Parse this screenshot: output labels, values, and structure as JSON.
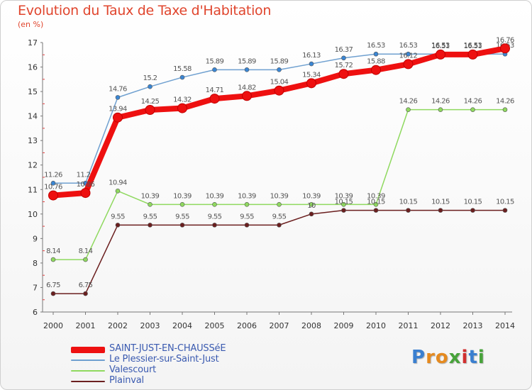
{
  "title": "Evolution du Taux de Taxe d'Habitation",
  "subtitle": "(en %)",
  "logo": {
    "letters": [
      "P",
      "r",
      "o",
      "x",
      "i",
      "t",
      "i"
    ],
    "colors": [
      "#3a7fd0",
      "#e58a1f",
      "#e58a1f",
      "#47a33a",
      "#d12f2f",
      "#3a7fd0",
      "#47a33a"
    ]
  },
  "chart_data": {
    "type": "line",
    "x": [
      2000,
      2001,
      2002,
      2003,
      2004,
      2005,
      2006,
      2007,
      2008,
      2009,
      2010,
      2011,
      2012,
      2013,
      2014
    ],
    "ylim": [
      6,
      17
    ],
    "yticks": [
      6,
      7,
      8,
      9,
      10,
      11,
      12,
      13,
      14,
      15,
      16,
      17
    ],
    "grid": false,
    "legend_position": "bottom-left",
    "series": [
      {
        "name": "Le Plessier-sur-Saint-Just",
        "color": "#6fa0d0",
        "marker": "#3a86d4",
        "values": [
          11.26,
          11.26,
          14.76,
          15.2,
          15.58,
          15.89,
          15.89,
          15.89,
          16.13,
          16.37,
          16.53,
          16.53,
          16.53,
          16.53,
          16.53
        ],
        "labels": [
          "11.26",
          "11.26",
          "14.76",
          "15.2",
          "15.58",
          "15.89",
          "15.89",
          "15.89",
          "16.13",
          "16.37",
          "16.53",
          "16.53",
          "16.53",
          "16.53",
          "16.53"
        ]
      },
      {
        "name": "Valescourt",
        "color": "#8fd95f",
        "marker": "#8fd95f",
        "values": [
          8.14,
          8.14,
          10.94,
          10.39,
          10.39,
          10.39,
          10.39,
          10.39,
          10.39,
          10.39,
          10.39,
          14.26,
          14.26,
          14.26,
          14.26
        ],
        "labels": [
          "8.14",
          "8.14",
          "10.94",
          "10.39",
          "10.39",
          "10.39",
          "10.39",
          "10.39",
          "10.39",
          "10.39",
          "10.39",
          "14.26",
          "14.26",
          "14.26",
          "14.26"
        ]
      },
      {
        "name": "Plainval",
        "color": "#6b1f1f",
        "marker": "#6b1f1f",
        "values": [
          6.75,
          6.75,
          9.55,
          9.55,
          9.55,
          9.55,
          9.55,
          9.55,
          10,
          10.15,
          10.15,
          10.15,
          10.15,
          10.15,
          10.15
        ],
        "labels": [
          "6.75",
          "6.75",
          "9.55",
          "9.55",
          "9.55",
          "9.55",
          "9.55",
          "9.55",
          "10",
          "10.15",
          "10.15",
          "10.15",
          "10.15",
          "10.15",
          "10.15"
        ]
      },
      {
        "name": "SAINT-JUST-EN-CHAUSSéE",
        "color": "#ee1010",
        "marker": "#ee1010",
        "values": [
          10.76,
          10.86,
          13.94,
          14.25,
          14.32,
          14.71,
          14.82,
          15.04,
          15.34,
          15.72,
          15.88,
          16.12,
          16.51,
          16.51,
          16.76
        ],
        "labels": [
          "10.76",
          "10.86",
          "13.94",
          "14.25",
          "14.32",
          "14.71",
          "14.82",
          "15.04",
          "15.34",
          "15.72",
          "15.88",
          "16.12",
          "16.51",
          "16.51",
          "16.76"
        ]
      }
    ]
  }
}
